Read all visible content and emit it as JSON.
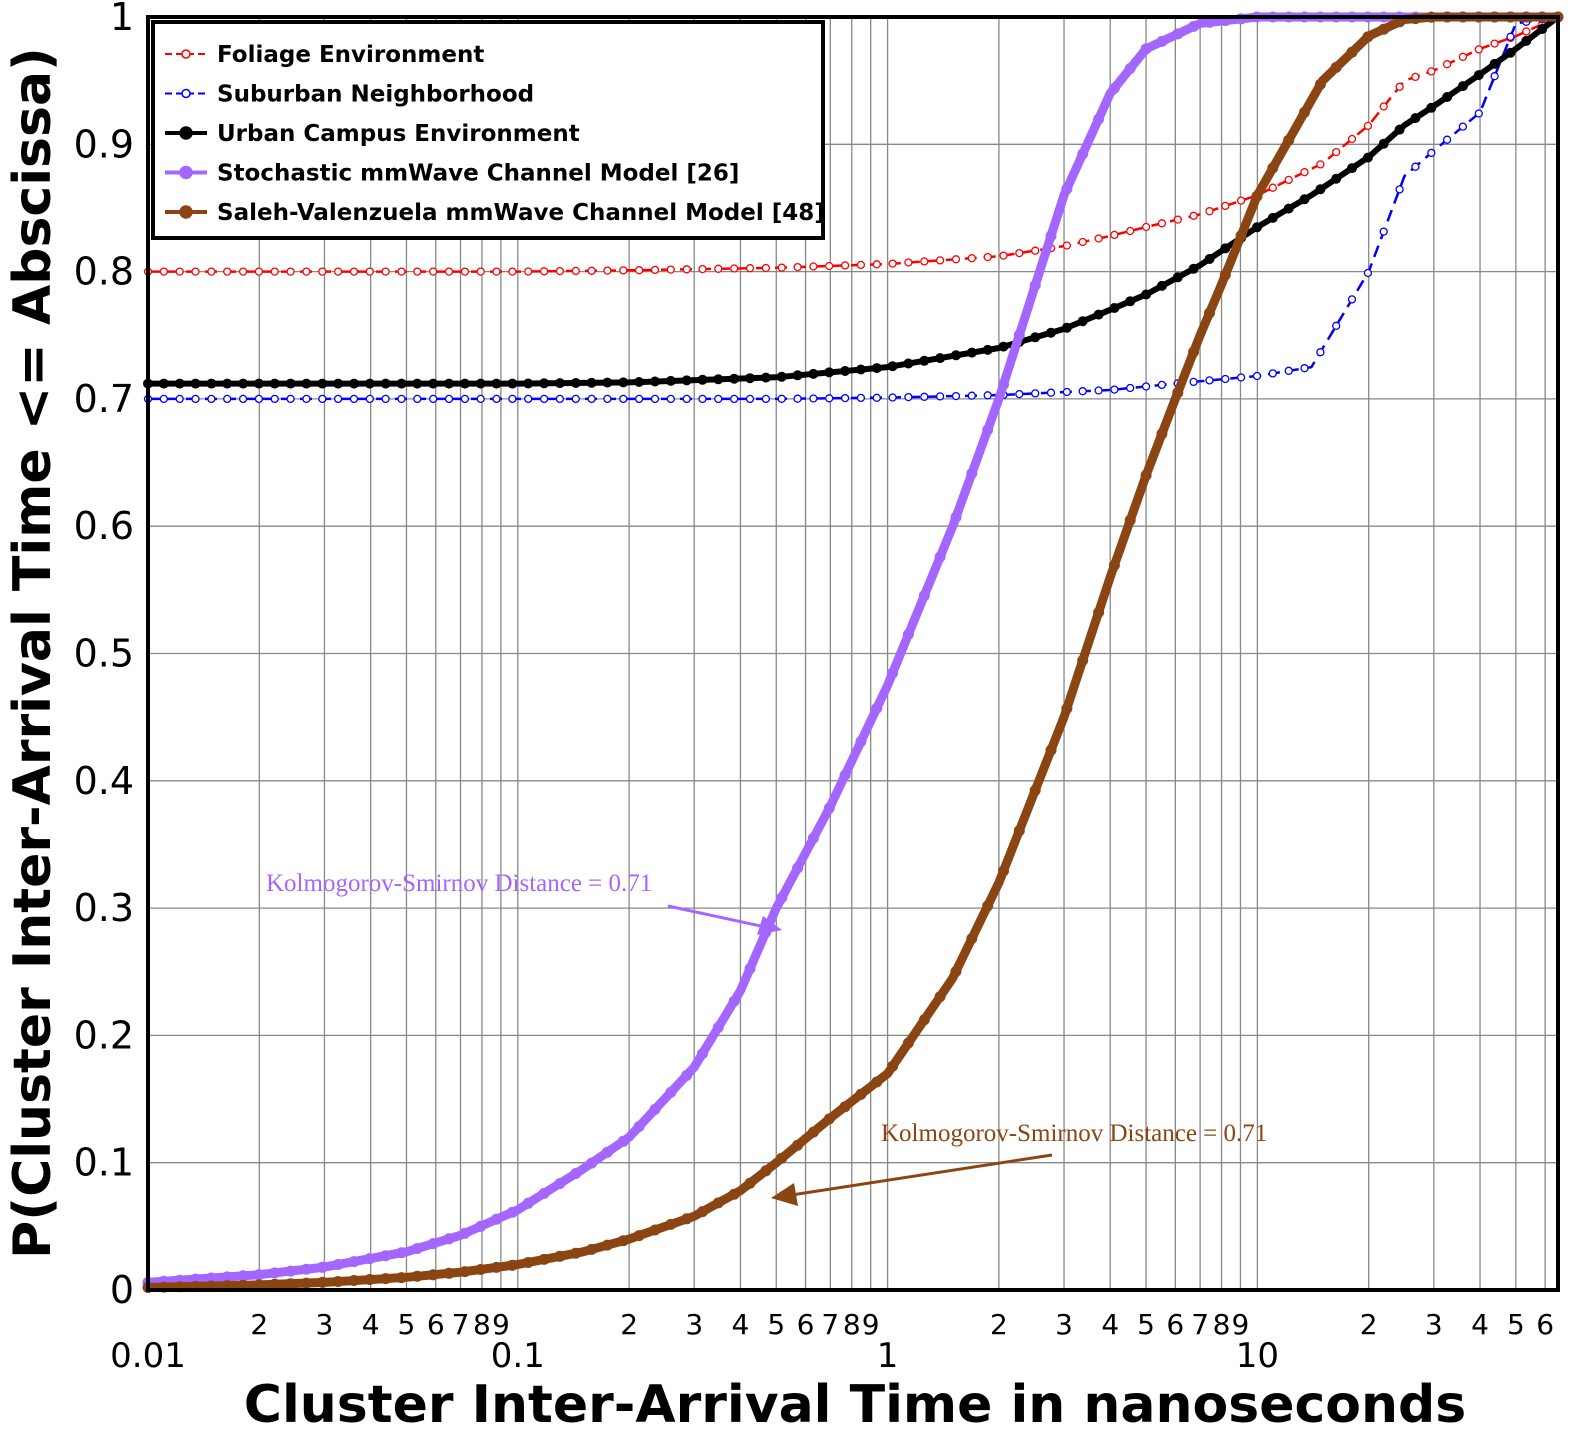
{
  "chart_data": {
    "type": "line",
    "xscale": "log",
    "xlim": [
      0.01,
      65
    ],
    "ylim": [
      0,
      1
    ],
    "grid": true,
    "legend_position": "top-left",
    "xlabel": "Cluster Inter-Arrival Time in nanoseconds",
    "ylabel": "P(Cluster Inter-Arrival Time <= Abscissa)",
    "x_major_ticks": [
      {
        "value": 0.01,
        "label": "0.01"
      },
      {
        "value": 0.1,
        "label": "0.1"
      },
      {
        "value": 1,
        "label": "1"
      },
      {
        "value": 10,
        "label": "10"
      }
    ],
    "x_minor_ticks": [
      {
        "value": 0.02,
        "label": "2"
      },
      {
        "value": 0.03,
        "label": "3"
      },
      {
        "value": 0.04,
        "label": "4"
      },
      {
        "value": 0.05,
        "label": "5"
      },
      {
        "value": 0.06,
        "label": "6"
      },
      {
        "value": 0.07,
        "label": "7"
      },
      {
        "value": 0.08,
        "label": "8"
      },
      {
        "value": 0.09,
        "label": "9"
      },
      {
        "value": 0.2,
        "label": "2"
      },
      {
        "value": 0.3,
        "label": "3"
      },
      {
        "value": 0.4,
        "label": "4"
      },
      {
        "value": 0.5,
        "label": "5"
      },
      {
        "value": 0.6,
        "label": "6"
      },
      {
        "value": 0.7,
        "label": "7"
      },
      {
        "value": 0.8,
        "label": "8"
      },
      {
        "value": 0.9,
        "label": "9"
      },
      {
        "value": 2,
        "label": "2"
      },
      {
        "value": 3,
        "label": "3"
      },
      {
        "value": 4,
        "label": "4"
      },
      {
        "value": 5,
        "label": "5"
      },
      {
        "value": 6,
        "label": "6"
      },
      {
        "value": 7,
        "label": "7"
      },
      {
        "value": 8,
        "label": "8"
      },
      {
        "value": 9,
        "label": "9"
      },
      {
        "value": 20,
        "label": "2"
      },
      {
        "value": 30,
        "label": "3"
      },
      {
        "value": 40,
        "label": "4"
      },
      {
        "value": 50,
        "label": "5"
      },
      {
        "value": 60,
        "label": "6"
      }
    ],
    "y_ticks": [
      {
        "value": 0,
        "label": "0"
      },
      {
        "value": 0.1,
        "label": "0.1"
      },
      {
        "value": 0.2,
        "label": "0.2"
      },
      {
        "value": 0.3,
        "label": "0.3"
      },
      {
        "value": 0.4,
        "label": "0.4"
      },
      {
        "value": 0.5,
        "label": "0.5"
      },
      {
        "value": 0.6,
        "label": "0.6"
      },
      {
        "value": 0.7,
        "label": "0.7"
      },
      {
        "value": 0.8,
        "label": "0.8"
      },
      {
        "value": 0.9,
        "label": "0.9"
      },
      {
        "value": 1,
        "label": "1"
      }
    ],
    "series": [
      {
        "name": "Foliage Environment",
        "color": "#ff0000",
        "marker": "open-circle",
        "x": [
          0.01,
          0.02,
          0.05,
          0.1,
          0.2,
          0.5,
          1,
          2,
          3,
          4,
          5,
          7,
          10,
          15,
          20,
          25,
          30,
          40,
          50,
          65
        ],
        "y": [
          0.8,
          0.8,
          0.8,
          0.8,
          0.801,
          0.803,
          0.806,
          0.812,
          0.82,
          0.828,
          0.835,
          0.845,
          0.86,
          0.885,
          0.915,
          0.95,
          0.958,
          0.975,
          0.985,
          1.0
        ]
      },
      {
        "name": "Suburban Neighborhood",
        "color": "#0000ff",
        "marker": "open-circle",
        "x": [
          0.01,
          0.02,
          0.05,
          0.1,
          0.2,
          0.5,
          1,
          2,
          4,
          6,
          10,
          14,
          20,
          25,
          30,
          40,
          50,
          65
        ],
        "y": [
          0.7,
          0.7,
          0.7,
          0.7,
          0.7,
          0.7,
          0.701,
          0.703,
          0.707,
          0.712,
          0.718,
          0.725,
          0.8,
          0.875,
          0.895,
          0.925,
          0.995,
          1.0
        ]
      },
      {
        "name": "Urban Campus Environment",
        "color": "#000000",
        "marker": "filled-circle",
        "x": [
          0.01,
          0.02,
          0.05,
          0.1,
          0.2,
          0.5,
          1,
          2,
          3,
          4,
          5,
          7,
          10,
          14,
          20,
          25,
          30,
          40,
          50,
          65
        ],
        "y": [
          0.712,
          0.712,
          0.712,
          0.712,
          0.713,
          0.717,
          0.725,
          0.74,
          0.755,
          0.77,
          0.782,
          0.805,
          0.835,
          0.86,
          0.89,
          0.915,
          0.93,
          0.955,
          0.975,
          1.0
        ]
      },
      {
        "name": "Stochastic mmWave Channel Model [26]",
        "color": "#a366ff",
        "marker": "filled-circle",
        "x": [
          0.01,
          0.02,
          0.03,
          0.05,
          0.07,
          0.1,
          0.15,
          0.2,
          0.3,
          0.4,
          0.5,
          0.7,
          1,
          1.5,
          2,
          3,
          4,
          5,
          7,
          10,
          15,
          20,
          65
        ],
        "y": [
          0.006,
          0.012,
          0.018,
          0.03,
          0.043,
          0.063,
          0.095,
          0.12,
          0.175,
          0.235,
          0.3,
          0.38,
          0.475,
          0.6,
          0.7,
          0.86,
          0.94,
          0.975,
          0.995,
          1.0,
          1.0,
          1.0,
          1.0
        ]
      },
      {
        "name": "Saleh-Valenzuela mmWave Channel Model [48]",
        "color": "#8b4513",
        "marker": "filled-circle",
        "x": [
          0.01,
          0.02,
          0.03,
          0.05,
          0.07,
          0.1,
          0.15,
          0.2,
          0.3,
          0.4,
          0.5,
          0.7,
          1,
          1.5,
          2,
          3,
          4,
          5,
          6,
          7,
          8,
          10,
          15,
          20,
          25,
          30,
          65
        ],
        "y": [
          0.002,
          0.004,
          0.006,
          0.01,
          0.014,
          0.02,
          0.03,
          0.04,
          0.058,
          0.078,
          0.1,
          0.135,
          0.17,
          0.245,
          0.32,
          0.45,
          0.56,
          0.64,
          0.7,
          0.75,
          0.79,
          0.86,
          0.95,
          0.985,
          0.998,
          1.0,
          1.0
        ]
      }
    ],
    "annotations": [
      {
        "text": "Kolmogorov-Smirnov Distance = 0.71",
        "color": "#a366ff"
      },
      {
        "text": "Kolmogorov-Smirnov Distance = 0.71",
        "color": "#8b4513"
      }
    ]
  }
}
